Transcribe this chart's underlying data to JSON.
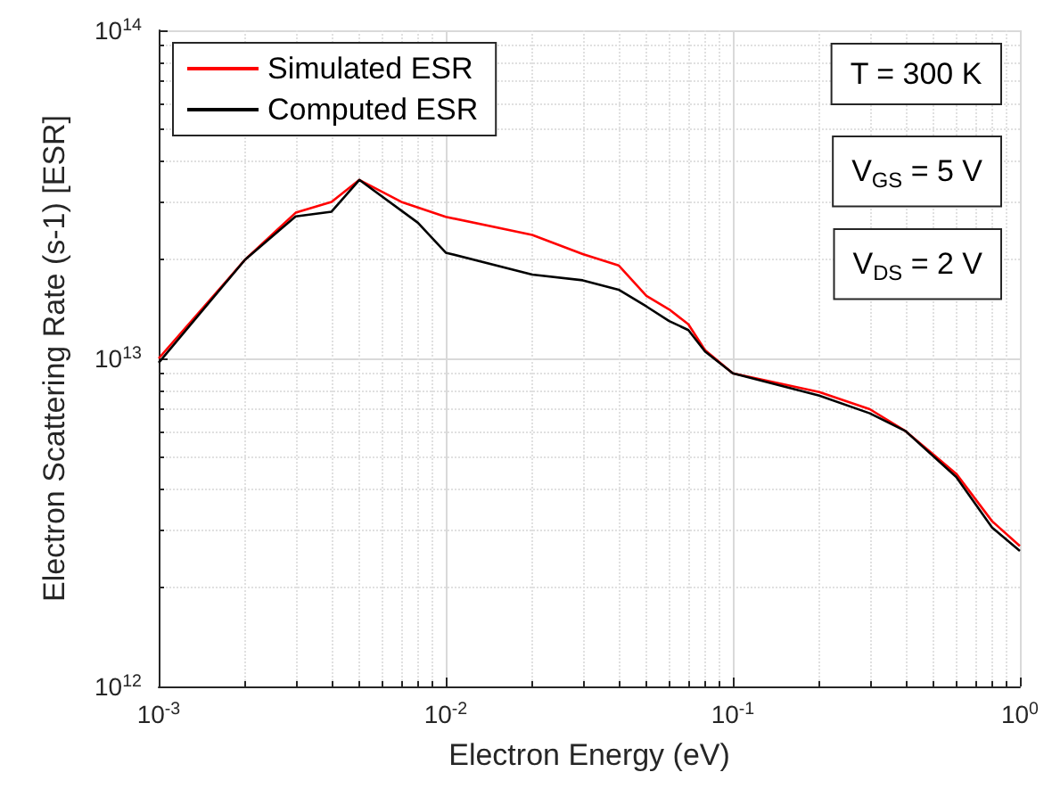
{
  "chart_data": {
    "type": "line",
    "xlabel": "Electron Energy (eV)",
    "ylabel": "Electron Scattering Rate (s-1) [ESR]",
    "log": "xy",
    "grid": true,
    "legend": "top left",
    "marker": "none",
    "line_style": "solid",
    "xlim": [
      0.001,
      1
    ],
    "xticks": [
      {
        "value": 0.001,
        "label": "10$^{-3}$"
      },
      {
        "value": 0.01,
        "label": "10$^{-2}$"
      },
      {
        "value": 0.1,
        "label": "10$^{-1}$"
      },
      {
        "value": 1,
        "label": "10$^{0}$"
      }
    ],
    "ylim": [
      1000000000000.0,
      100000000000000.0
    ],
    "yticks": [
      {
        "value": 1000000000000.0,
        "label": "10$^{12}$"
      },
      {
        "value": 10000000000000.0,
        "label": "10$^{13}$"
      },
      {
        "value": 100000000000000.0,
        "label": "10$^{14}$"
      }
    ],
    "annotations": [
      "T = 300 K",
      "V$_{GS}$ = 5 V",
      "V$_{DS}$ = 2 V"
    ],
    "series": [
      {
        "name": "Simulated ESR",
        "color": "#ff0000",
        "x": [
          0.001,
          0.002,
          0.003,
          0.004,
          0.005,
          0.007,
          0.01,
          0.02,
          0.03,
          0.04,
          0.05,
          0.06,
          0.07,
          0.08,
          0.1,
          0.2,
          0.3,
          0.4,
          0.6,
          0.8,
          1
        ],
        "values": [
          10000000000000.0,
          20000000000000.0,
          27800000000000.0,
          30000000000000.0,
          35000000000000.0,
          30000000000000.0,
          27000000000000.0,
          23800000000000.0,
          20800000000000.0,
          19200000000000.0,
          15500000000000.0,
          14100000000000.0,
          12700000000000.0,
          10600000000000.0,
          9000000000000.0,
          7900000000000.0,
          7000000000000.0,
          6000000000000.0,
          4450000000000.0,
          3190000000000.0,
          2680000000000.0
        ]
      },
      {
        "name": "Computed ESR",
        "color": "#000000",
        "x": [
          0.001,
          0.002,
          0.003,
          0.004,
          0.005,
          0.008,
          0.01,
          0.02,
          0.03,
          0.04,
          0.05,
          0.06,
          0.07,
          0.08,
          0.1,
          0.2,
          0.3,
          0.4,
          0.6,
          0.8,
          1
        ],
        "values": [
          9700000000000.0,
          20000000000000.0,
          27100000000000.0,
          28000000000000.0,
          35000000000000.0,
          25900000000000.0,
          21000000000000.0,
          18000000000000.0,
          17300000000000.0,
          16200000000000.0,
          14400000000000.0,
          13000000000000.0,
          12200000000000.0,
          10500000000000.0,
          9000000000000.0,
          7700000000000.0,
          6800000000000.0,
          6000000000000.0,
          4350000000000.0,
          3050000000000.0,
          2590000000000.0
        ]
      }
    ]
  }
}
